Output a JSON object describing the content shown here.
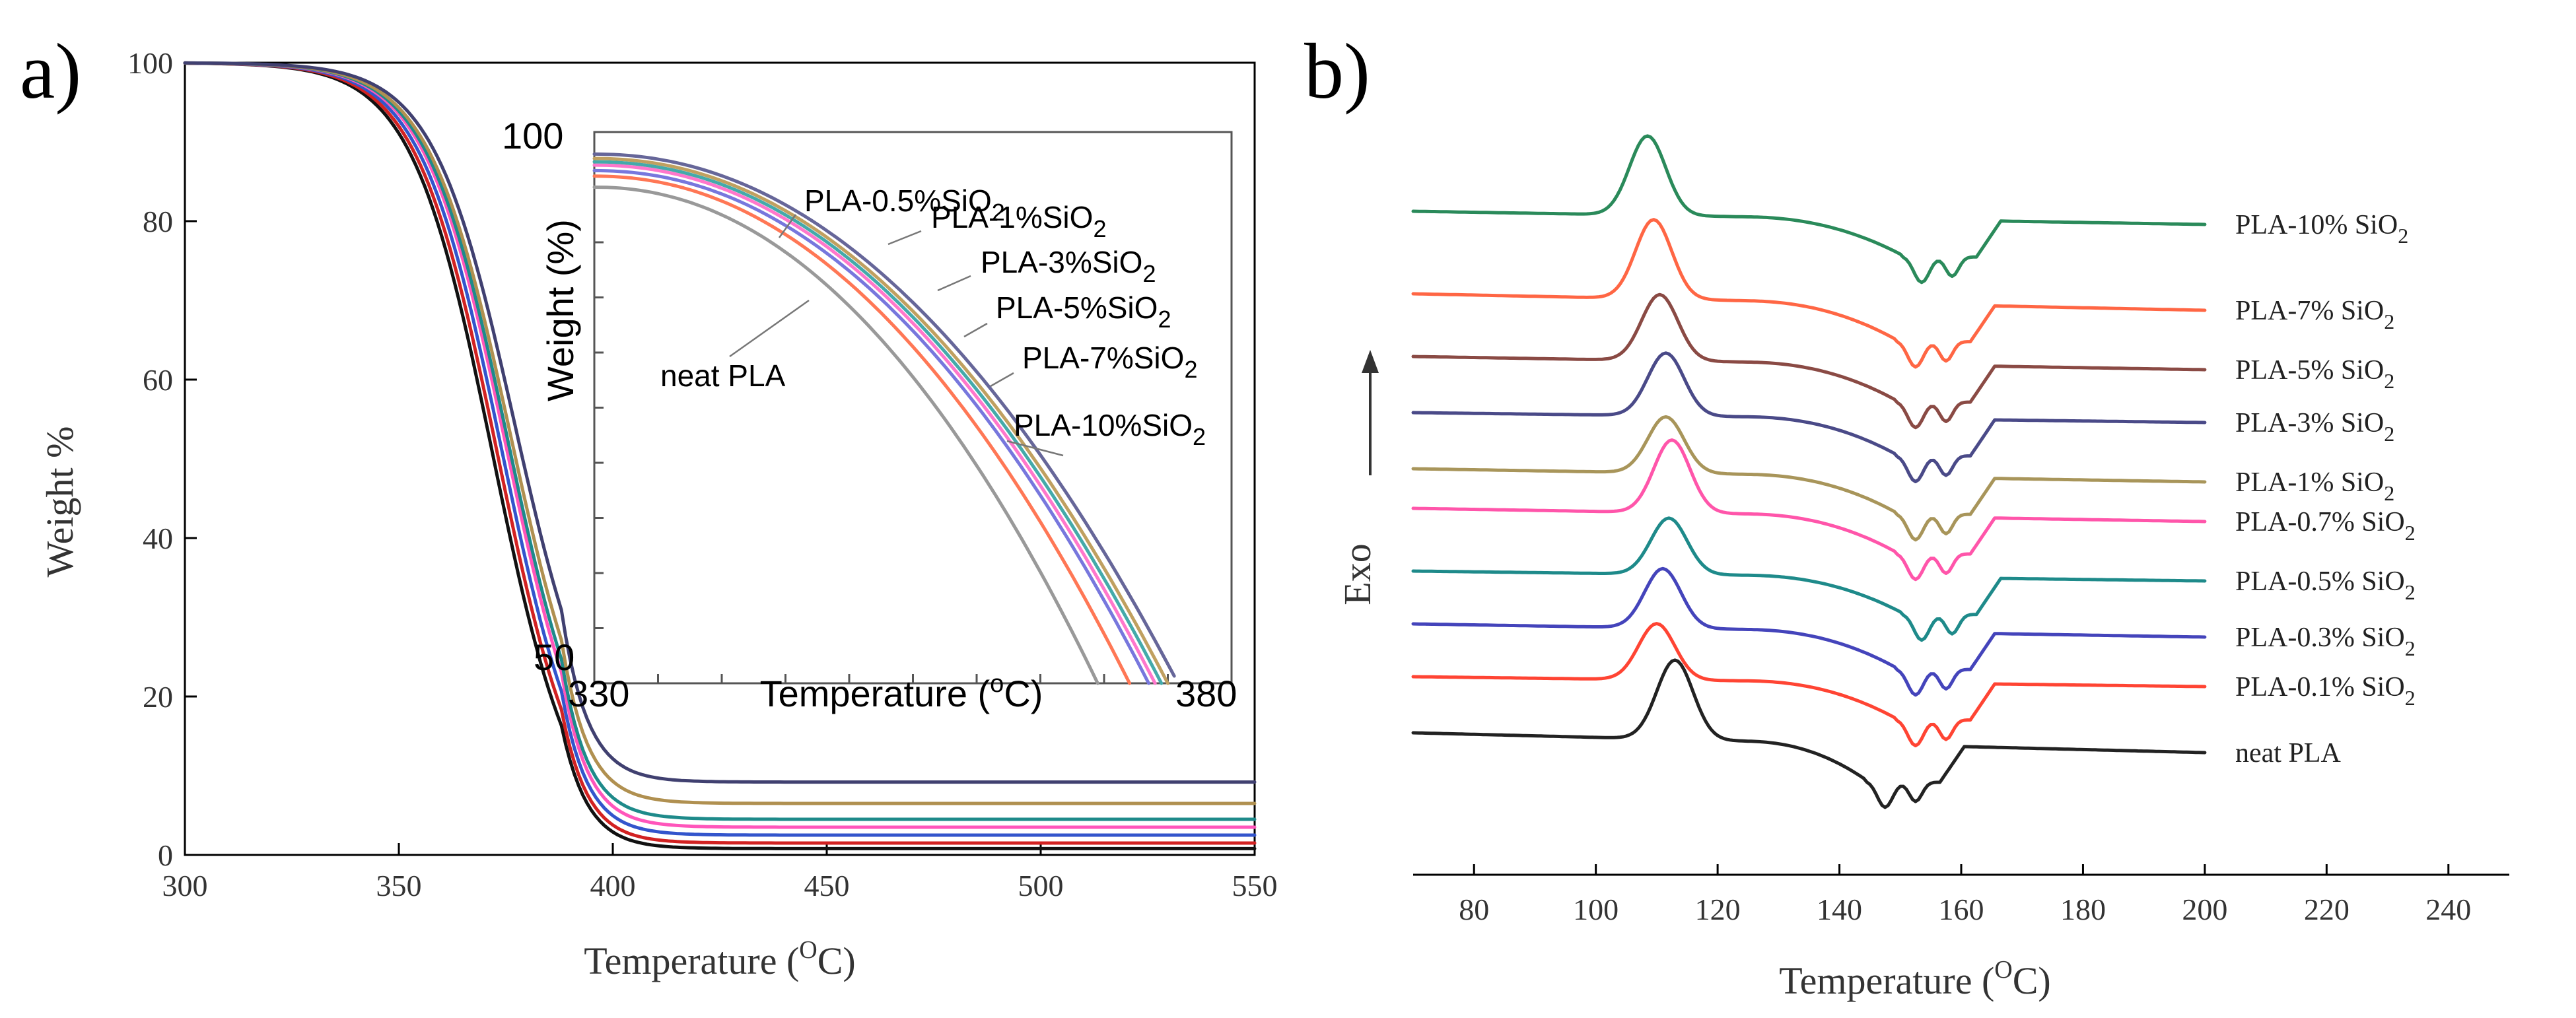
{
  "chart_data": [
    {
      "id": "a",
      "panel_label": "a)",
      "type": "line",
      "title": "",
      "xlabel": "Temperature (",
      "xlabel_super": "O",
      "xlabel_end": "C)",
      "ylabel": "Weight %",
      "xlim": [
        300,
        550
      ],
      "ylim": [
        0,
        100
      ],
      "xticks": [
        300,
        350,
        400,
        450,
        500,
        550
      ],
      "yticks": [
        0,
        20,
        40,
        60,
        80,
        100
      ],
      "series": [
        {
          "name": "neat PLA",
          "color": "#111111",
          "residue": 0.8,
          "onset": 372
        },
        {
          "name": "PLA-0.5%SiO2",
          "color": "#d22222",
          "residue": 1.5,
          "onset": 373
        },
        {
          "name": "PLA-1%SiO2",
          "color": "#3355cc",
          "residue": 2.5,
          "onset": 374
        },
        {
          "name": "PLA-3%SiO2",
          "color": "#ff55bb",
          "residue": 3.5,
          "onset": 375
        },
        {
          "name": "PLA-5%SiO2",
          "color": "#1e8a8a",
          "residue": 4.5,
          "onset": 375.5
        },
        {
          "name": "PLA-7%SiO2",
          "color": "#b09050",
          "residue": 6.5,
          "onset": 376
        },
        {
          "name": "PLA-10%SiO2",
          "color": "#404070",
          "residue": 9.2,
          "onset": 377
        }
      ],
      "inset": {
        "xlabel_pre": "Temperature (",
        "xlabel_super": "o",
        "xlabel_end": "C)",
        "ylabel": "Weight (%)",
        "xlim": [
          330,
          380
        ],
        "ylim": [
          50,
          100
        ],
        "xticks_labels": [
          "330",
          "380"
        ],
        "yticks_labels": [
          "50",
          "100"
        ],
        "labels": [
          {
            "text": "PLA-0.5%SiO",
            "sub": "2"
          },
          {
            "text": "PLA-1%SiO",
            "sub": "2"
          },
          {
            "text": "PLA-3%SiO",
            "sub": "2"
          },
          {
            "text": "PLA-5%SiO",
            "sub": "2"
          },
          {
            "text": "PLA-7%SiO",
            "sub": "2"
          },
          {
            "text": "PLA-10%SiO",
            "sub": "2"
          },
          {
            "text": "neat PLA",
            "sub": ""
          }
        ]
      }
    },
    {
      "id": "b",
      "panel_label": "b)",
      "type": "line",
      "title": "",
      "xlabel": "Temperature (",
      "xlabel_super": "O",
      "xlabel_end": "C)",
      "ylabel": "Exo",
      "xlim": [
        70,
        250
      ],
      "xticks": [
        80,
        100,
        120,
        140,
        160,
        180,
        200,
        220,
        240
      ],
      "series": [
        {
          "name": "PLA-10% SiO",
          "sub": "2",
          "color": "#2a8a5a",
          "cc_peak": 108.5,
          "cc_height": 120,
          "melt": 158.5
        },
        {
          "name": "PLA-7% SiO",
          "sub": "2",
          "color": "#ff6644",
          "cc_peak": 109.5,
          "cc_height": 120,
          "melt": 157.5
        },
        {
          "name": "PLA-5% SiO",
          "sub": "2",
          "color": "#8a4a44",
          "cc_peak": 110.5,
          "cc_height": 100,
          "melt": 157.5
        },
        {
          "name": "PLA-3% SiO",
          "sub": "2",
          "color": "#4a4a88",
          "cc_peak": 111.5,
          "cc_height": 95,
          "melt": 157.5
        },
        {
          "name": "PLA-1% SiO",
          "sub": "2",
          "color": "#a8955a",
          "cc_peak": 111.5,
          "cc_height": 85,
          "melt": 157.5
        },
        {
          "name": "PLA-0.7% SiO",
          "sub": "2",
          "color": "#ff55aa",
          "cc_peak": 112.5,
          "cc_height": 110,
          "melt": 157.5
        },
        {
          "name": "PLA-0.5% SiO",
          "sub": "2",
          "color": "#1e8a8a",
          "cc_peak": 112.0,
          "cc_height": 85,
          "melt": 158.5
        },
        {
          "name": "PLA-0.3% SiO",
          "sub": "2",
          "color": "#4444bb",
          "cc_peak": 111.0,
          "cc_height": 90,
          "melt": 157.5
        },
        {
          "name": "PLA-0.1% SiO",
          "sub": "2",
          "color": "#ff4433",
          "cc_peak": 110.0,
          "cc_height": 85,
          "melt": 157.5
        },
        {
          "name": "neat PLA",
          "sub": "",
          "color": "#222222",
          "cc_peak": 113.0,
          "cc_height": 120,
          "melt": 152.5
        }
      ]
    }
  ]
}
